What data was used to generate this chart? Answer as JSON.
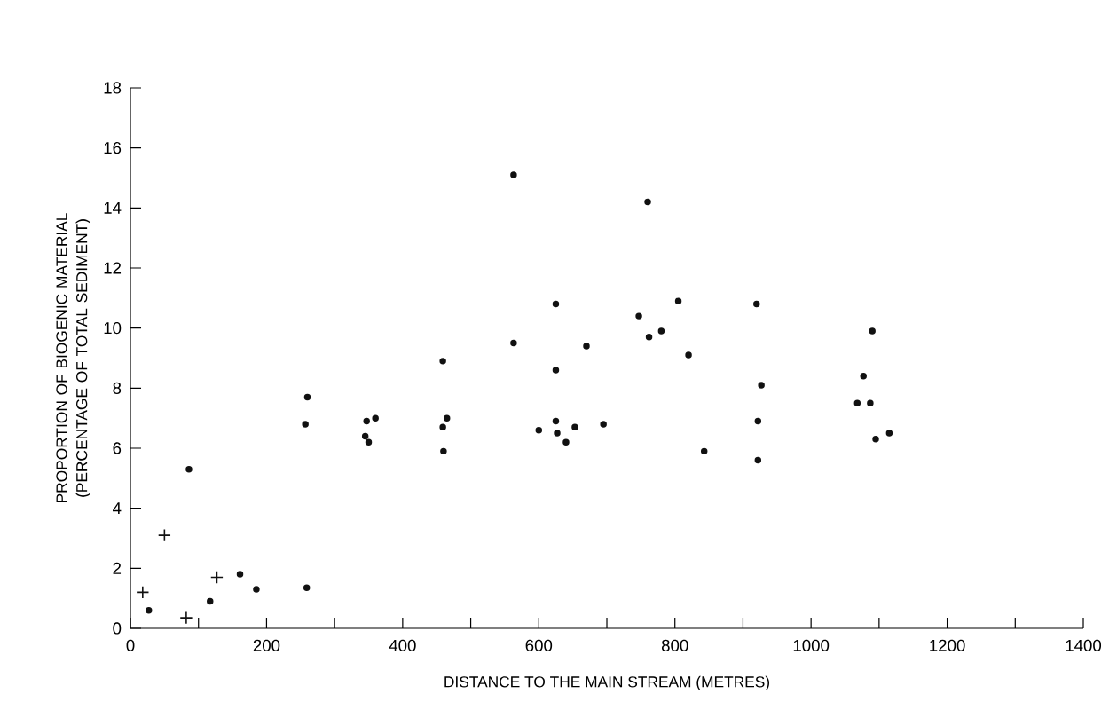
{
  "chart_data": {
    "type": "scatter",
    "xlabel": "DISTANCE TO THE MAIN STREAM (METRES)",
    "ylabel": "PROPORTION OF BIOGENIC MATERIAL (PERCENTAGE OF TOTAL SEDIMENT)",
    "xlim": [
      0,
      1400
    ],
    "ylim": [
      0,
      18
    ],
    "xticks": [
      0,
      {
        "value": 100,
        "label": null
      },
      200,
      {
        "value": 300,
        "label": null
      },
      400,
      {
        "value": 500,
        "label": null
      },
      600,
      {
        "value": 700,
        "label": null
      },
      800,
      {
        "value": 900,
        "label": null
      },
      1000,
      {
        "value": 1100,
        "label": null
      },
      1200,
      {
        "value": 1300,
        "label": null
      },
      1400
    ],
    "yticks": [
      0,
      2,
      4,
      6,
      8,
      10,
      12,
      14,
      16,
      18
    ],
    "series": [
      {
        "color": "#111111",
        "marker": "circle",
        "x": [
          27,
          86,
          117,
          161,
          185,
          257,
          260,
          259,
          345,
          347,
          350,
          360,
          459,
          459,
          460,
          465,
          563,
          563,
          600,
          625,
          625,
          625,
          627,
          640,
          653,
          670,
          695,
          747,
          760,
          762,
          780,
          805,
          820,
          843,
          920,
          922,
          922,
          927,
          1068,
          1077,
          1087,
          1090,
          1095,
          1115
        ],
        "values": [
          0.6,
          5.3,
          0.9,
          1.8,
          1.3,
          6.8,
          7.7,
          1.35,
          6.4,
          6.9,
          6.2,
          7.0,
          8.9,
          6.7,
          5.9,
          7.0,
          15.1,
          9.5,
          6.6,
          10.8,
          8.6,
          6.9,
          6.5,
          6.2,
          6.7,
          9.4,
          6.8,
          10.4,
          14.2,
          9.7,
          9.9,
          10.9,
          9.1,
          5.9,
          10.8,
          6.9,
          5.6,
          8.1,
          7.5,
          8.4,
          7.5,
          9.9,
          6.3,
          6.5
        ]
      },
      {
        "color": "#111111",
        "marker": "cross",
        "x": [
          18,
          50,
          82,
          127
        ],
        "values": [
          1.2,
          3.1,
          0.35,
          1.7
        ]
      }
    ]
  }
}
